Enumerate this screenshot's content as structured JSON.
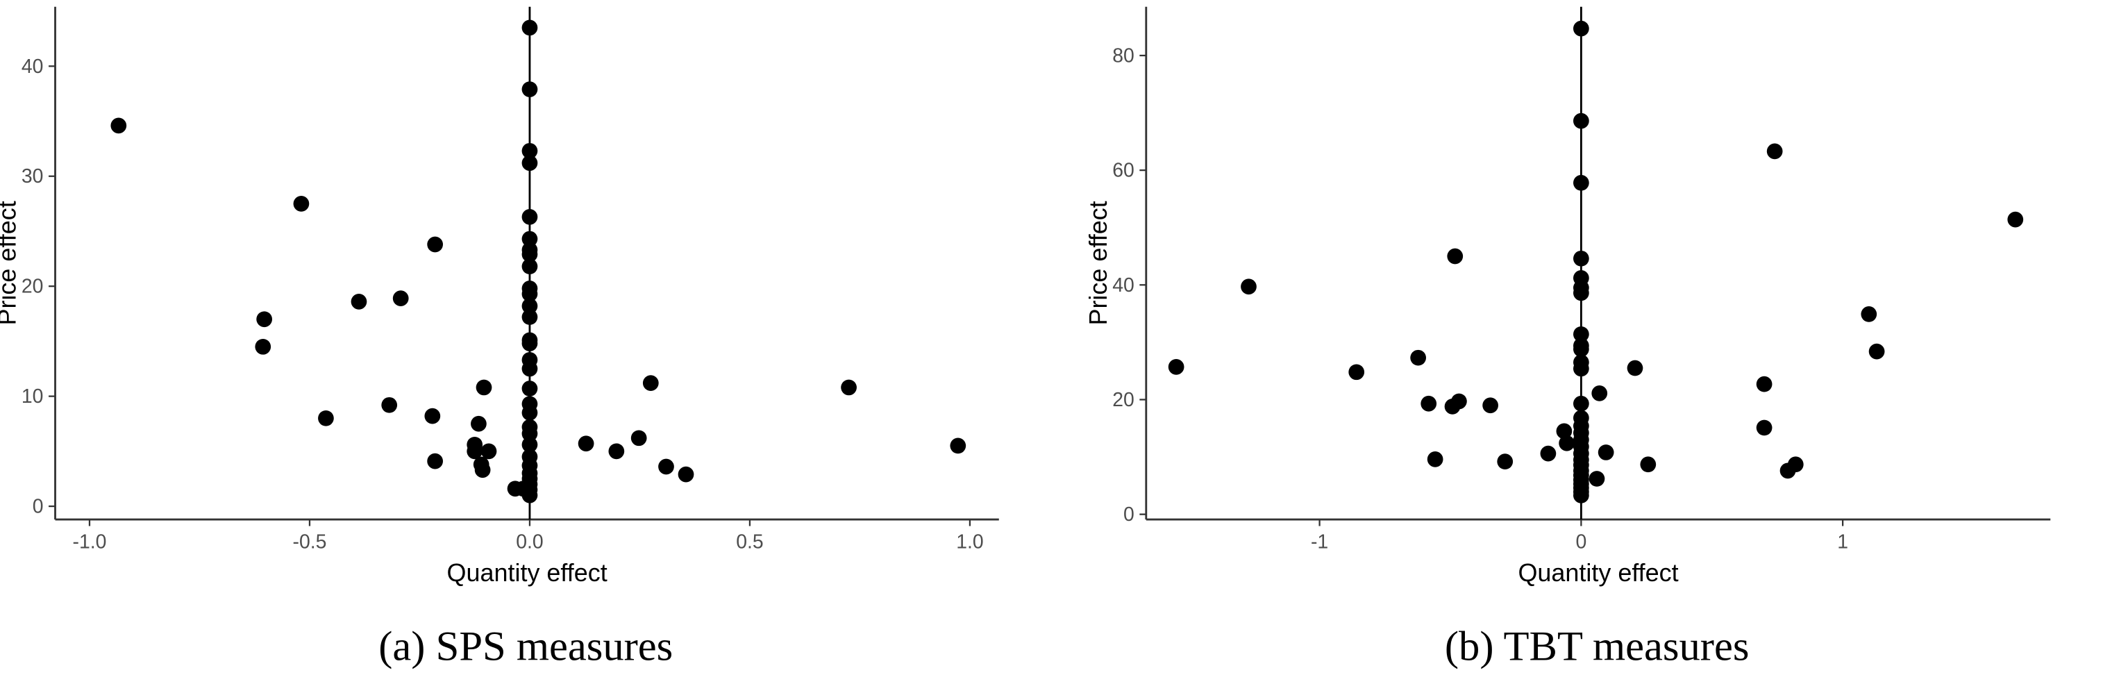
{
  "chart_data": [
    {
      "type": "scatter",
      "caption": "(a) SPS measures",
      "xlabel": "Quantity effect",
      "ylabel": "Price effect",
      "color": "#000000",
      "vline": 0,
      "x": [
        -0.934,
        -0.519,
        -0.603,
        -0.606,
        -0.388,
        -0.293,
        -0.215,
        -0.463,
        -0.319,
        -0.221,
        -0.215,
        -0.104,
        -0.116,
        -0.125,
        -0.125,
        -0.093,
        -0.11,
        -0.107,
        -0.033,
        -0.015,
        0.128,
        0.197,
        0.248,
        0.275,
        0.31,
        0.355,
        0.725,
        0.973,
        0,
        0,
        0,
        0,
        0,
        0,
        0,
        0,
        0,
        0,
        0,
        0,
        0,
        0,
        0,
        0,
        0,
        0,
        0,
        0,
        0,
        0,
        0,
        0,
        0,
        0,
        0,
        0,
        0,
        0
      ],
      "values": [
        34.6,
        27.5,
        17.0,
        14.5,
        18.6,
        18.9,
        23.8,
        8.0,
        9.2,
        8.2,
        4.1,
        10.8,
        7.5,
        5.6,
        5.0,
        5.0,
        3.8,
        3.3,
        1.6,
        1.6,
        5.7,
        5.0,
        6.2,
        11.2,
        3.6,
        2.9,
        10.8,
        5.5,
        43.5,
        37.9,
        32.3,
        31.2,
        26.3,
        24.3,
        23.3,
        22.9,
        21.8,
        19.8,
        19.3,
        18.2,
        17.2,
        15.1,
        14.8,
        13.3,
        12.5,
        10.7,
        9.3,
        8.5,
        7.2,
        6.6,
        5.6,
        4.5,
        3.7,
        3.0,
        2.5,
        2.0,
        1.5,
        1.0
      ],
      "xlim": [
        -1.078,
        1.066
      ],
      "ylim": [
        -1.2,
        45.4
      ],
      "xticks": [
        {
          "value": -1,
          "label": "-1.0"
        },
        -0.5,
        {
          "value": 0,
          "label": "0.0"
        },
        0.5,
        {
          "value": 1,
          "label": "1.0"
        }
      ],
      "yticks": [
        0,
        10,
        20,
        30,
        40
      ]
    },
    {
      "type": "scatter",
      "caption": "(b) TBT measures",
      "xlabel": "Quantity effect",
      "ylabel": "Price effect",
      "color": "#000000",
      "vline": 0,
      "x": [
        -1.548,
        -1.271,
        -0.859,
        -0.623,
        -0.583,
        -0.558,
        -0.347,
        -0.492,
        -0.467,
        -0.482,
        -0.291,
        -0.126,
        -0.065,
        -0.055,
        0.07,
        0.06,
        0.095,
        0.206,
        0.256,
        0.74,
        0.7,
        0.7,
        0.79,
        0.82,
        1.1,
        1.13,
        1.66,
        0,
        0,
        0,
        0,
        0,
        0,
        0,
        0,
        0,
        0,
        0,
        0,
        0,
        0,
        0,
        0,
        0,
        0,
        0,
        0,
        0,
        0,
        0,
        0,
        0,
        0,
        0,
        0
      ],
      "values": [
        25.7,
        39.7,
        24.8,
        27.3,
        19.3,
        9.6,
        19.0,
        18.8,
        19.7,
        45.0,
        9.2,
        10.6,
        14.5,
        12.4,
        21.1,
        6.2,
        10.8,
        25.5,
        8.7,
        63.3,
        22.7,
        15.1,
        7.6,
        8.7,
        34.9,
        28.4,
        51.4,
        84.7,
        68.6,
        57.8,
        44.6,
        41.2,
        39.5,
        38.6,
        31.4,
        29.4,
        28.8,
        26.5,
        25.4,
        19.3,
        16.8,
        15.4,
        14.2,
        13.0,
        11.8,
        10.6,
        9.5,
        8.6,
        7.6,
        6.8,
        6.0,
        5.3,
        4.6,
        3.9,
        3.3
      ],
      "xlim": [
        -1.663,
        1.794
      ],
      "ylim": [
        -0.9,
        88.5
      ],
      "xticks": [
        -1,
        0,
        1
      ],
      "yticks": [
        0,
        20,
        40,
        60,
        80
      ]
    }
  ]
}
